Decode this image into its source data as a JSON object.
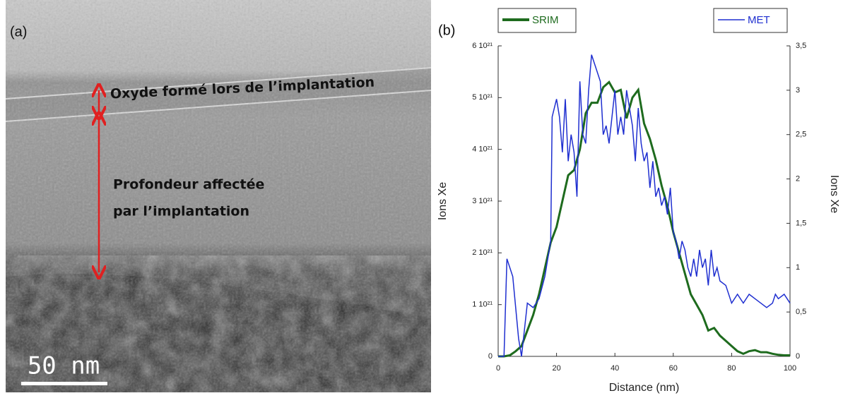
{
  "image_panel": {
    "panel_label": "(a)",
    "oxide_label": "Oxyde formé lors de l’implantation",
    "depth_label": [
      "Profondeur affectée",
      "par l’implantation"
    ],
    "scale_label": "50 nm"
  },
  "chart_data": {
    "type": "line",
    "panel_label": "(b)",
    "x_label": "Distance (nm)",
    "y_label": "Ions Xe",
    "y2_label": "Ions Xe",
    "xlim": [
      0,
      100
    ],
    "xticks": [
      0,
      20,
      40,
      60,
      80,
      100
    ],
    "ylim": [
      0,
      6e+21
    ],
    "yticks": [
      0,
      {
        "value": 1e+21,
        "label": "1 10²¹"
      },
      {
        "value": 2e+21,
        "label": "2 10²¹"
      },
      {
        "value": 3e+21,
        "label": "3 10²¹"
      },
      {
        "value": 4e+21,
        "label": "4 10²¹"
      },
      {
        "value": 5e+21,
        "label": "5 10²¹"
      },
      {
        "value": 6e+21,
        "label": "6 10²¹"
      }
    ],
    "y2lim": [
      0,
      3.5
    ],
    "y2ticks": [
      0,
      {
        "value": 0.5,
        "label": "0,5"
      },
      1,
      {
        "value": 1.5,
        "label": "1,5"
      },
      2,
      {
        "value": 2.5,
        "label": "2,5"
      },
      3,
      {
        "value": 3.5,
        "label": "3,5"
      }
    ],
    "series": [
      {
        "name": "SRIM",
        "color": "#1e6b1e",
        "x": [
          0,
          2,
          4,
          6,
          8,
          10,
          12,
          14,
          16,
          18,
          20,
          22,
          24,
          26,
          28,
          30,
          32,
          34,
          36,
          38,
          40,
          42,
          44,
          46,
          48,
          50,
          52,
          54,
          56,
          58,
          60,
          62,
          64,
          66,
          68,
          70,
          72,
          74,
          76,
          78,
          80,
          82,
          84,
          86,
          88,
          90,
          92,
          94,
          96,
          98,
          100
        ],
        "values": [
          0,
          0,
          2e+19,
          1e+20,
          2e+20,
          5e+20,
          8e+20,
          1.2e+21,
          1.7e+21,
          2.2e+21,
          2.5e+21,
          3e+21,
          3.5e+21,
          3.6e+21,
          4e+21,
          4.7e+21,
          4.9e+21,
          4.9e+21,
          5.2e+21,
          5.3e+21,
          5.1e+21,
          5.15e+21,
          4.6e+21,
          5e+21,
          5.15e+21,
          4.5e+21,
          4.2e+21,
          3.8e+21,
          3.3e+21,
          2.9e+21,
          2.4e+21,
          2e+21,
          1.6e+21,
          1.2e+21,
          1e+21,
          8e+20,
          5e+20,
          5.5e+20,
          4e+20,
          3e+20,
          2e+20,
          1e+20,
          5e+19,
          1e+20,
          1.2e+20,
          8e+19,
          8e+19,
          5e+19,
          3e+19,
          2e+19,
          2e+19
        ]
      },
      {
        "name": "MET",
        "color": "#1f2fd0",
        "axis": "y2",
        "x": [
          0,
          2,
          3,
          5,
          7,
          8,
          9,
          10,
          12,
          14,
          16,
          18,
          18.5,
          20,
          21,
          22,
          23,
          24,
          25,
          26,
          27,
          28,
          29,
          30,
          31,
          32,
          33,
          35,
          36,
          37,
          38,
          39,
          40,
          41,
          42,
          43,
          44,
          45,
          46,
          47,
          48,
          49,
          50,
          51,
          52,
          53,
          54,
          55,
          56,
          57,
          58,
          59,
          60,
          61,
          62,
          63,
          64,
          65,
          66,
          67,
          68,
          69,
          70,
          71,
          72,
          73,
          74,
          75,
          76,
          78,
          80,
          82,
          84,
          86,
          88,
          90,
          92,
          94,
          95,
          96,
          98,
          100
        ],
        "values": [
          0,
          0,
          1.1,
          0.9,
          0.2,
          0,
          0.3,
          0.6,
          0.55,
          0.65,
          0.9,
          1.3,
          2.7,
          2.9,
          2.7,
          2.3,
          2.9,
          2.2,
          2.5,
          2.3,
          1.8,
          3.1,
          2.5,
          2.4,
          3.0,
          3.4,
          3.3,
          3.1,
          2.5,
          2.6,
          2.4,
          2.7,
          3.0,
          2.5,
          2.7,
          2.5,
          3.0,
          2.8,
          2.6,
          2.2,
          2.8,
          2.4,
          2.2,
          2.3,
          1.9,
          2.2,
          1.8,
          1.9,
          1.7,
          1.8,
          1.6,
          1.9,
          1.4,
          1.3,
          1.1,
          1.3,
          1.2,
          1.0,
          0.9,
          1.1,
          0.9,
          1.2,
          1.0,
          1.1,
          0.8,
          1.2,
          0.9,
          1.0,
          0.85,
          0.8,
          0.6,
          0.7,
          0.6,
          0.7,
          0.65,
          0.6,
          0.55,
          0.6,
          0.7,
          0.65,
          0.7,
          0.6
        ]
      }
    ]
  }
}
